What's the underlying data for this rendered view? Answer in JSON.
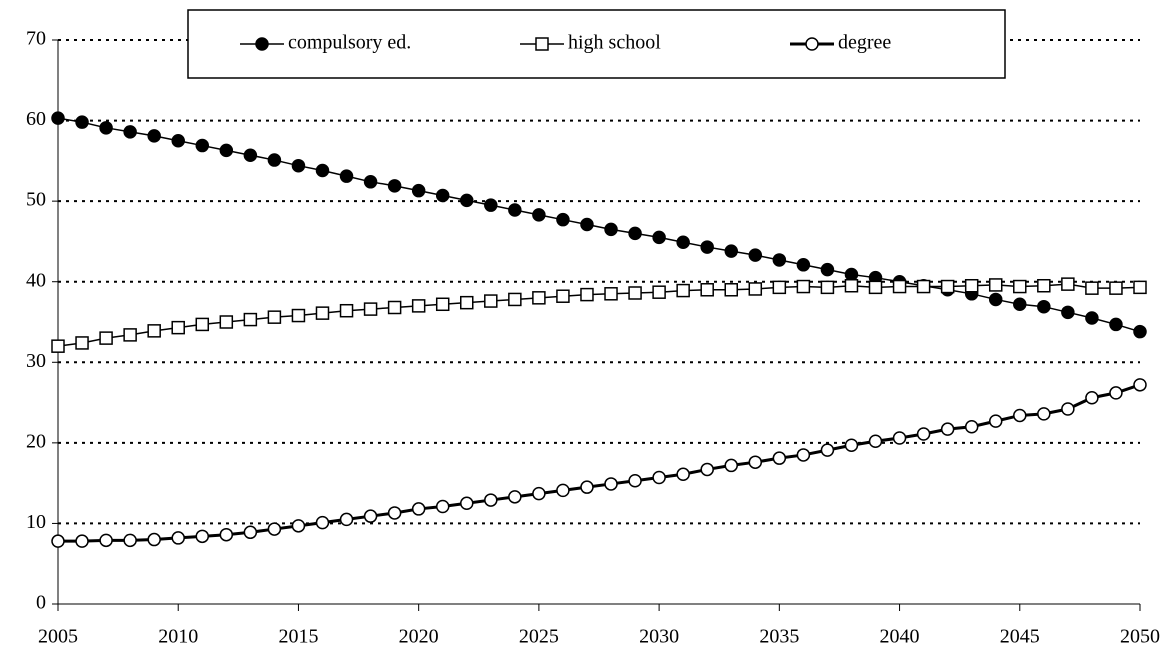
{
  "chart_data": {
    "type": "line",
    "x": [
      2005,
      2006,
      2007,
      2008,
      2009,
      2010,
      2011,
      2012,
      2013,
      2014,
      2015,
      2016,
      2017,
      2018,
      2019,
      2020,
      2021,
      2022,
      2023,
      2024,
      2025,
      2026,
      2027,
      2028,
      2029,
      2030,
      2031,
      2032,
      2033,
      2034,
      2035,
      2036,
      2037,
      2038,
      2039,
      2040,
      2041,
      2042,
      2043,
      2044,
      2045,
      2046,
      2047,
      2048,
      2049,
      2050
    ],
    "series": [
      {
        "name": "compulsory ed.",
        "color": "#000000",
        "marker": "filled-circle",
        "line_width": 1.5,
        "values": [
          60.3,
          59.8,
          59.1,
          58.6,
          58.1,
          57.5,
          56.9,
          56.3,
          55.7,
          55.1,
          54.4,
          53.8,
          53.1,
          52.4,
          51.9,
          51.3,
          50.7,
          50.1,
          49.5,
          48.9,
          48.3,
          47.7,
          47.1,
          46.5,
          46.0,
          45.5,
          44.9,
          44.3,
          43.8,
          43.3,
          42.7,
          42.1,
          41.5,
          40.9,
          40.5,
          40.0,
          39.5,
          39.0,
          38.5,
          37.8,
          37.2,
          36.9,
          36.2,
          35.5,
          34.7,
          33.8
        ]
      },
      {
        "name": "high school",
        "color": "#000000",
        "marker": "open-square",
        "line_width": 1.5,
        "values": [
          32.0,
          32.4,
          33.0,
          33.4,
          33.9,
          34.3,
          34.7,
          35.0,
          35.3,
          35.6,
          35.8,
          36.1,
          36.4,
          36.6,
          36.8,
          37.0,
          37.2,
          37.4,
          37.6,
          37.8,
          38.0,
          38.2,
          38.4,
          38.5,
          38.6,
          38.7,
          38.9,
          39.0,
          39.0,
          39.1,
          39.3,
          39.4,
          39.3,
          39.5,
          39.3,
          39.4,
          39.4,
          39.4,
          39.5,
          39.6,
          39.4,
          39.5,
          39.7,
          39.2,
          39.2,
          39.3
        ]
      },
      {
        "name": "degree",
        "color": "#000000",
        "marker": "open-circle",
        "line_width": 3,
        "values": [
          7.8,
          7.8,
          7.9,
          7.9,
          8.0,
          8.2,
          8.4,
          8.6,
          8.9,
          9.3,
          9.7,
          10.1,
          10.5,
          10.9,
          11.3,
          11.8,
          12.1,
          12.5,
          12.9,
          13.3,
          13.7,
          14.1,
          14.5,
          14.9,
          15.3,
          15.7,
          16.1,
          16.7,
          17.2,
          17.6,
          18.1,
          18.5,
          19.1,
          19.7,
          20.2,
          20.6,
          21.1,
          21.7,
          22.0,
          22.7,
          23.4,
          23.6,
          24.2,
          25.6,
          26.2,
          27.2
        ]
      }
    ],
    "xlim": [
      2005,
      2050
    ],
    "xticks": [
      2005,
      2010,
      2015,
      2020,
      2025,
      2030,
      2035,
      2040,
      2045,
      2050
    ],
    "ylim": [
      0,
      70
    ],
    "yticks": [
      0,
      10,
      20,
      30,
      40,
      50,
      60,
      70
    ],
    "grid": true,
    "legend": "top"
  }
}
